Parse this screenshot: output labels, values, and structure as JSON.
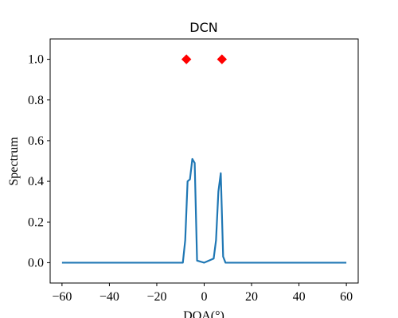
{
  "chart_data": {
    "type": "line",
    "title": "DCN",
    "xlabel": "DOA(°)",
    "ylabel": "Spectrum",
    "xlim": [
      -65,
      65
    ],
    "ylim": [
      -0.1,
      1.1
    ],
    "grid": false,
    "xticks": [
      -60,
      -40,
      -20,
      0,
      20,
      40,
      60
    ],
    "xtick_labels": [
      "−60",
      "−40",
      "−20",
      "0",
      "20",
      "40",
      "60"
    ],
    "yticks": [
      0.0,
      0.2,
      0.4,
      0.6,
      0.8,
      1.0
    ],
    "ytick_labels": [
      "0.0",
      "0.2",
      "0.4",
      "0.6",
      "0.8",
      "1.0"
    ],
    "series": [
      {
        "type": "line",
        "color": "#1f77b4",
        "x": [
          -60,
          -9,
          -8,
          -7,
          -6,
          -5,
          -4,
          -3,
          0,
          4,
          5,
          6,
          7,
          8,
          9,
          60
        ],
        "y": [
          0,
          0,
          0.11,
          0.4,
          0.41,
          0.51,
          0.49,
          0.01,
          0,
          0.02,
          0.11,
          0.35,
          0.44,
          0.03,
          0,
          0
        ]
      },
      {
        "type": "scatter",
        "marker": "diamond",
        "color": "#ff0000",
        "x": [
          -7.5,
          7.5
        ],
        "y": [
          1.0,
          1.0
        ]
      }
    ]
  }
}
